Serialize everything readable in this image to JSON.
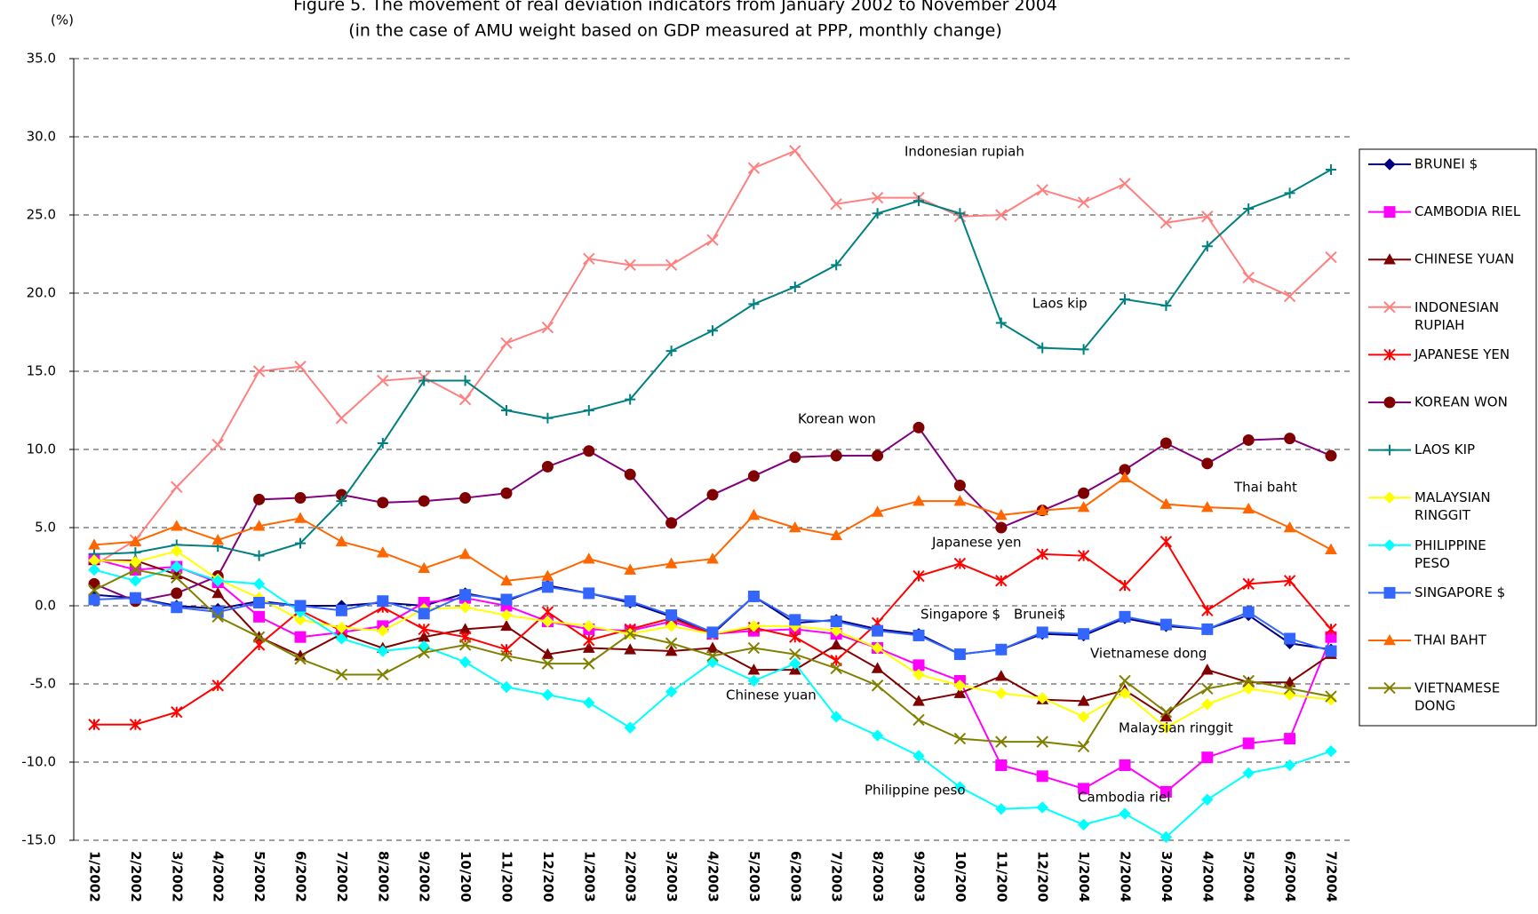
{
  "chart_data": {
    "type": "line",
    "title": "Figure 5. The movement of real deviation indicators from January 2002 to November 2004",
    "subtitle": "(in the case of AMU weight based on GDP measured at PPP, monthly change)",
    "y_label": "(%)",
    "categories": [
      "1/2002",
      "2/2002",
      "3/2002",
      "4/2002",
      "5/2002",
      "6/2002",
      "7/2002",
      "8/2002",
      "9/2002",
      "10/200",
      "11/200",
      "12/200",
      "1/2003",
      "2/2003",
      "3/2003",
      "4/2003",
      "5/2003",
      "6/2003",
      "7/2003",
      "8/2003",
      "9/2003",
      "10/200",
      "11/200",
      "12/200",
      "1/2004",
      "2/2004",
      "3/2004",
      "4/2004",
      "5/2004",
      "6/2004",
      "7/2004"
    ],
    "ylim": [
      -15,
      35
    ],
    "yticks": [
      {
        "value": 35,
        "label": "35.0"
      },
      {
        "value": 30,
        "label": "30.0"
      },
      {
        "value": 25,
        "label": "25.0"
      },
      {
        "value": 20,
        "label": "20.0"
      },
      {
        "value": 15,
        "label": "15.0"
      },
      {
        "value": 10,
        "label": "10.0"
      },
      {
        "value": 5,
        "label": "5.0"
      },
      {
        "value": 0,
        "label": "0.0"
      },
      {
        "value": -5,
        "label": "-5.0"
      },
      {
        "value": -10,
        "label": "-10.0"
      },
      {
        "value": -15,
        "label": "-15.0"
      }
    ],
    "grid": true,
    "legend": "right",
    "series": [
      {
        "name": "BRUNEI $",
        "color": "#000080",
        "marker_color": "#000080",
        "marker": "diamond",
        "values": [
          0.7,
          0.5,
          0.0,
          -0.2,
          0.3,
          0.0,
          0.0,
          0.2,
          0.0,
          0.8,
          0.3,
          1.3,
          0.8,
          0.2,
          -0.7,
          -1.8,
          0.6,
          -1.1,
          -0.9,
          -1.5,
          -1.8,
          -3.1,
          -2.8,
          -1.8,
          -1.9,
          -0.8,
          -1.3,
          -1.5,
          -0.6,
          -2.4,
          -2.8
        ]
      },
      {
        "name": "CAMBODIA RIEL",
        "color": "#ff00ff",
        "marker_color": "#ff00ff",
        "marker": "square",
        "values": [
          3.0,
          2.3,
          2.5,
          1.5,
          -0.7,
          -2.0,
          -1.7,
          -1.3,
          0.2,
          0.5,
          0.0,
          -1.0,
          -1.5,
          -1.6,
          -1.0,
          -1.8,
          -1.6,
          -1.5,
          -1.8,
          -2.7,
          -3.8,
          -4.8,
          -10.2,
          -10.9,
          -11.7,
          -10.2,
          -11.9,
          -9.7,
          -8.8,
          -8.5,
          -2.0
        ]
      },
      {
        "name": "CHINESE YUAN",
        "color": "#800000",
        "marker_color": "#800000",
        "marker": "triangle",
        "values": [
          2.9,
          2.9,
          2.0,
          0.8,
          -2.0,
          -3.2,
          -1.8,
          -2.7,
          -2.0,
          -1.5,
          -1.3,
          -3.1,
          -2.7,
          -2.8,
          -2.9,
          -2.7,
          -4.1,
          -4.1,
          -2.5,
          -4.0,
          -6.1,
          -5.6,
          -4.5,
          -6.0,
          -6.1,
          -5.4,
          -7.1,
          -4.1,
          -4.9,
          -4.9,
          -3.1
        ]
      },
      {
        "name": "INDONESIAN RUPIAH",
        "color": "#ff8080",
        "marker_color": "#ff8080",
        "marker": "x",
        "values": [
          2.6,
          4.2,
          7.6,
          10.3,
          15.0,
          15.3,
          12.0,
          14.4,
          14.6,
          13.2,
          16.8,
          17.8,
          22.2,
          21.8,
          21.8,
          23.4,
          28.0,
          29.1,
          25.7,
          26.1,
          26.1,
          24.9,
          25.0,
          26.6,
          25.8,
          27.0,
          24.5,
          24.9,
          21.0,
          19.8,
          22.3
        ]
      },
      {
        "name": "JAPANESE YEN",
        "color": "#ff0000",
        "marker_color": "#ff0000",
        "marker": "star",
        "values": [
          -7.6,
          -7.6,
          -6.8,
          -5.1,
          -2.5,
          -0.3,
          -1.6,
          -0.1,
          -1.5,
          -2.0,
          -2.8,
          -0.4,
          -2.2,
          -1.5,
          -0.8,
          -1.8,
          -1.4,
          -2.0,
          -3.5,
          -1.1,
          1.9,
          2.7,
          1.6,
          3.3,
          3.2,
          1.3,
          4.1,
          -0.3,
          1.4,
          1.6,
          -1.5
        ]
      },
      {
        "name": "KOREAN WON",
        "color": "#800080",
        "marker_color": "#800000",
        "marker": "circle",
        "values": [
          1.4,
          0.3,
          0.8,
          1.9,
          6.8,
          6.9,
          7.1,
          6.6,
          6.7,
          6.9,
          7.2,
          8.9,
          9.9,
          8.4,
          5.3,
          7.1,
          8.3,
          9.5,
          9.6,
          9.6,
          11.4,
          7.7,
          5.0,
          6.1,
          7.2,
          8.7,
          10.4,
          9.1,
          10.6,
          10.7,
          9.6
        ]
      },
      {
        "name": "LAOS KIP",
        "color": "#008080",
        "marker_color": "#008080",
        "marker": "plus",
        "values": [
          3.3,
          3.4,
          3.9,
          3.8,
          3.2,
          4.0,
          6.7,
          10.4,
          14.4,
          14.4,
          12.5,
          12.0,
          12.5,
          13.2,
          16.3,
          17.6,
          19.3,
          20.4,
          21.8,
          25.1,
          25.9,
          25.1,
          18.1,
          16.5,
          16.4,
          19.6,
          19.2,
          23.0,
          25.4,
          26.4,
          27.9
        ]
      },
      {
        "name": "MALAYSIAN RINGGIT",
        "color": "#ffff00",
        "marker_color": "#ffff00",
        "marker": "diamond",
        "values": [
          2.9,
          2.8,
          3.5,
          1.7,
          0.5,
          -0.9,
          -1.4,
          -1.6,
          -0.2,
          -0.1,
          -0.6,
          -1.0,
          -1.3,
          -1.8,
          -1.3,
          -1.8,
          -1.3,
          -1.3,
          -1.6,
          -2.7,
          -4.4,
          -5.1,
          -5.6,
          -5.9,
          -7.1,
          -5.6,
          -7.8,
          -6.3,
          -5.3,
          -5.7,
          -6.0
        ]
      },
      {
        "name": "PHILIPPINE PESO",
        "color": "#00ffff",
        "marker_color": "#00ffff",
        "marker": "diamond",
        "values": [
          2.3,
          1.6,
          2.5,
          1.6,
          1.4,
          -0.4,
          -2.1,
          -2.9,
          -2.6,
          -3.6,
          -5.2,
          -5.7,
          -6.2,
          -7.8,
          -5.5,
          -3.6,
          -4.8,
          -3.7,
          -7.1,
          -8.3,
          -9.6,
          -11.6,
          -13.0,
          -12.9,
          -14.0,
          -13.3,
          -14.8,
          -12.4,
          -10.7,
          -10.2,
          -9.3
        ]
      },
      {
        "name": "SINGAPORE $",
        "color": "#3366ff",
        "marker_color": "#3366ff",
        "marker": "square",
        "values": [
          0.4,
          0.5,
          -0.1,
          -0.4,
          0.2,
          0.0,
          -0.3,
          0.3,
          -0.5,
          0.7,
          0.4,
          1.2,
          0.8,
          0.3,
          -0.6,
          -1.7,
          0.6,
          -0.9,
          -1.0,
          -1.6,
          -1.9,
          -3.1,
          -2.8,
          -1.7,
          -1.8,
          -0.7,
          -1.2,
          -1.5,
          -0.4,
          -2.1,
          -2.9
        ]
      },
      {
        "name": "THAI BAHT",
        "color": "#ff6600",
        "marker_color": "#ff6600",
        "marker": "triangle",
        "values": [
          3.9,
          4.1,
          5.1,
          4.2,
          5.1,
          5.6,
          4.1,
          3.4,
          2.4,
          3.3,
          1.6,
          1.9,
          3.0,
          2.3,
          2.7,
          3.0,
          5.8,
          5.0,
          4.5,
          6.0,
          6.7,
          6.7,
          5.8,
          6.1,
          6.3,
          8.2,
          6.5,
          6.3,
          6.2,
          5.0,
          3.6
        ]
      },
      {
        "name": "VIETNAMESE DONG",
        "color": "#808000",
        "marker_color": "#808000",
        "marker": "x",
        "values": [
          1.0,
          2.3,
          1.8,
          -0.7,
          -2.0,
          -3.4,
          -4.4,
          -4.4,
          -3.0,
          -2.5,
          -3.2,
          -3.7,
          -3.7,
          -1.8,
          -2.4,
          -3.2,
          -2.7,
          -3.1,
          -4.0,
          -5.1,
          -7.3,
          -8.5,
          -8.7,
          -8.7,
          -9.0,
          -4.8,
          -6.8,
          -5.3,
          -4.8,
          -5.3,
          -5.8
        ]
      }
    ],
    "annotations": [
      "Indonesian rupiah",
      "Laos kip",
      "Korean won",
      "Thai baht",
      "Japanese yen",
      "Singapore $",
      "Brunei$",
      "Vietnamese dong",
      "Chinese yuan",
      "Malaysian ringgit",
      "Philippine peso",
      "Cambodia riel"
    ]
  }
}
